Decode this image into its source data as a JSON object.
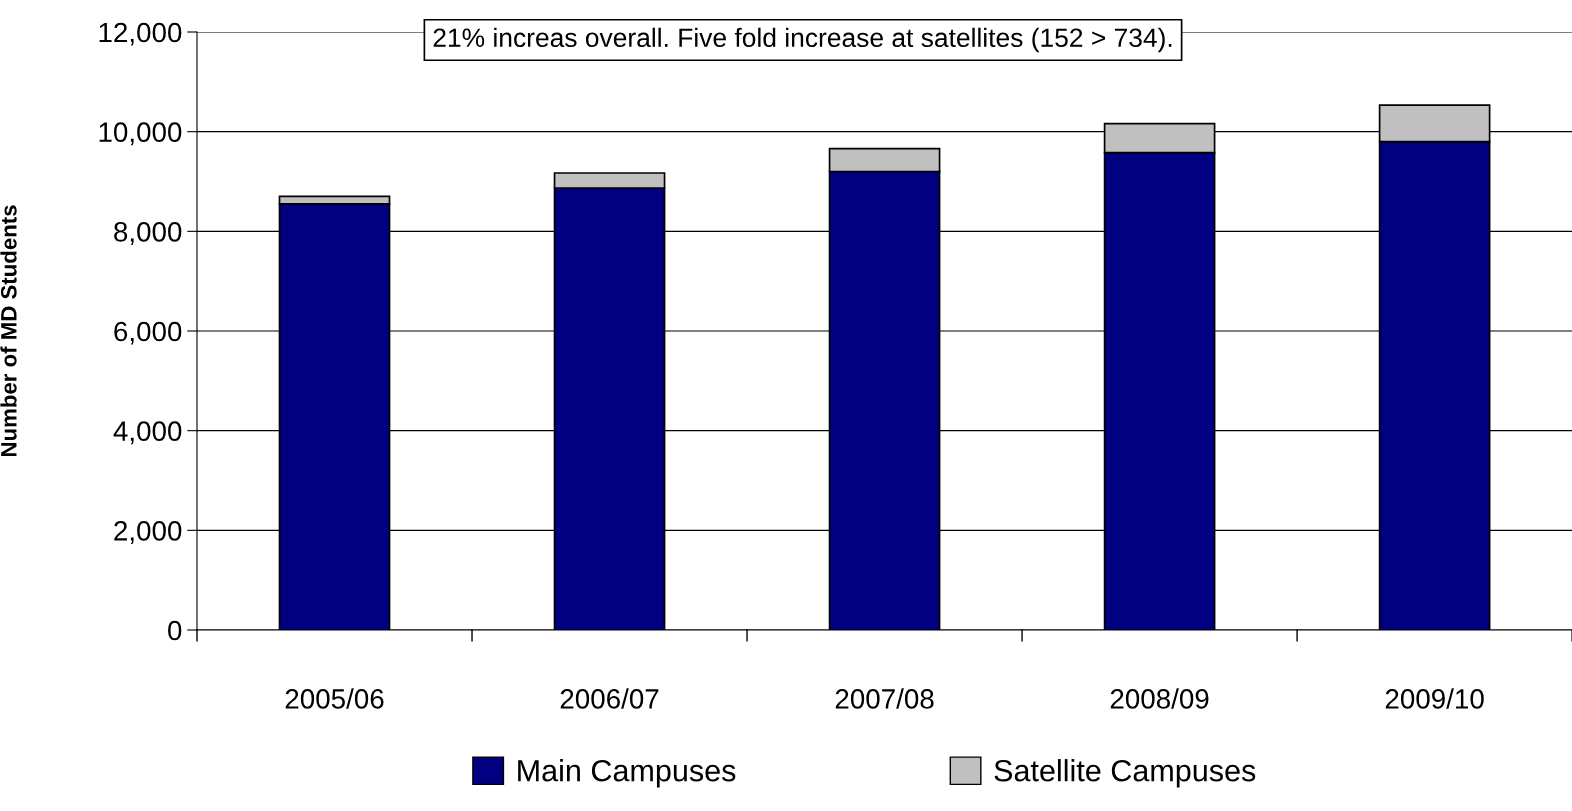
{
  "chart_data": {
    "type": "bar",
    "stacked": true,
    "ylabel": "Number of MD Students",
    "categories": [
      "2005/06",
      "2006/07",
      "2007/08",
      "2008/09",
      "2009/10"
    ],
    "series": [
      {
        "name": "Main Campuses",
        "color": "#000080",
        "values": [
          8550,
          8870,
          9200,
          9580,
          9800
        ]
      },
      {
        "name": "Satellite Campuses",
        "color": "#c0c0c0",
        "values": [
          152,
          300,
          460,
          580,
          734
        ]
      }
    ],
    "ylim": [
      0,
      12000
    ],
    "yticks": [
      {
        "value": 0,
        "label": "0"
      },
      {
        "value": 2000,
        "label": "2,000"
      },
      {
        "value": 4000,
        "label": "4,000"
      },
      {
        "value": 6000,
        "label": "6,000"
      },
      {
        "value": 8000,
        "label": "8,000"
      },
      {
        "value": 10000,
        "label": "10,000"
      },
      {
        "value": 12000,
        "label": "12,000"
      }
    ],
    "grid": "y",
    "legend": "bottom",
    "annotations": [
      "21% increas overall. Five fold increase at satellites (152 > 734)."
    ]
  }
}
